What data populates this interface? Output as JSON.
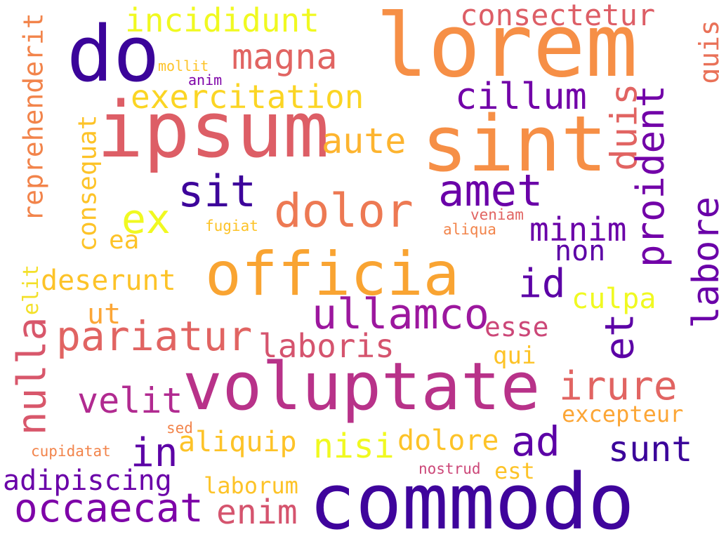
{
  "words": [
    {
      "text": "lorem",
      "color": "#f68f46",
      "rotated": false
    },
    {
      "text": "do",
      "color": "#3b049a",
      "rotated": false
    },
    {
      "text": "ipsum",
      "color": "#dd5e66",
      "rotated": false
    },
    {
      "text": "sint",
      "color": "#f68f46",
      "rotated": false
    },
    {
      "text": "commodo",
      "color": "#3f049c",
      "rotated": false
    },
    {
      "text": "voluptate",
      "color": "#b83289",
      "rotated": false
    },
    {
      "text": "officia",
      "color": "#f9a432",
      "rotated": false
    },
    {
      "text": "incididunt",
      "color": "#f0f921",
      "rotated": false
    },
    {
      "text": "consectetur",
      "color": "#dd5e66",
      "rotated": false
    },
    {
      "text": "magna",
      "color": "#e16462",
      "rotated": false
    },
    {
      "text": "mollit",
      "color": "#fdc328",
      "rotated": false
    },
    {
      "text": "anim",
      "color": "#7e03a8",
      "rotated": false
    },
    {
      "text": "exercitation",
      "color": "#fbd524",
      "rotated": false
    },
    {
      "text": "cillum",
      "color": "#7201a8",
      "rotated": false
    },
    {
      "text": "aute",
      "color": "#fdb42f",
      "rotated": false
    },
    {
      "text": "sit",
      "color": "#3d049b",
      "rotated": false
    },
    {
      "text": "amet",
      "color": "#6a00a8",
      "rotated": false
    },
    {
      "text": "dolor",
      "color": "#ed7953",
      "rotated": false
    },
    {
      "text": "ex",
      "color": "#f0f921",
      "rotated": false
    },
    {
      "text": "ea",
      "color": "#fdc328",
      "rotated": false
    },
    {
      "text": "fugiat",
      "color": "#fdc328",
      "rotated": false
    },
    {
      "text": "veniam",
      "color": "#e16462",
      "rotated": false
    },
    {
      "text": "aliqua",
      "color": "#f2844b",
      "rotated": false
    },
    {
      "text": "minim",
      "color": "#6a00a8",
      "rotated": false
    },
    {
      "text": "non",
      "color": "#5c01a6",
      "rotated": false
    },
    {
      "text": "id",
      "color": "#5c01a6",
      "rotated": false
    },
    {
      "text": "culpa",
      "color": "#f0f921",
      "rotated": false
    },
    {
      "text": "deserunt",
      "color": "#fdc328",
      "rotated": false
    },
    {
      "text": "ut",
      "color": "#fca636",
      "rotated": false
    },
    {
      "text": "pariatur",
      "color": "#e16462",
      "rotated": false
    },
    {
      "text": "ullamco",
      "color": "#9c179e",
      "rotated": false
    },
    {
      "text": "esse",
      "color": "#cc4778",
      "rotated": false
    },
    {
      "text": "laboris",
      "color": "#d5546e",
      "rotated": false
    },
    {
      "text": "qui",
      "color": "#fdc328",
      "rotated": false
    },
    {
      "text": "velit",
      "color": "#b12a90",
      "rotated": false
    },
    {
      "text": "irure",
      "color": "#e16462",
      "rotated": false
    },
    {
      "text": "excepteur",
      "color": "#fca636",
      "rotated": false
    },
    {
      "text": "in",
      "color": "#5c01a6",
      "rotated": false
    },
    {
      "text": "aliquip",
      "color": "#fdc328",
      "rotated": false
    },
    {
      "text": "nisi",
      "color": "#f0f921",
      "rotated": false
    },
    {
      "text": "dolore",
      "color": "#fdc328",
      "rotated": false
    },
    {
      "text": "ad",
      "color": "#5c01a6",
      "rotated": false
    },
    {
      "text": "sunt",
      "color": "#3b049a",
      "rotated": false
    },
    {
      "text": "sed",
      "color": "#f2844b",
      "rotated": false
    },
    {
      "text": "cupidatat",
      "color": "#f2844b",
      "rotated": false
    },
    {
      "text": "nostrud",
      "color": "#cc4778",
      "rotated": false
    },
    {
      "text": "est",
      "color": "#fdc328",
      "rotated": false
    },
    {
      "text": "adipiscing",
      "color": "#6a00a8",
      "rotated": false
    },
    {
      "text": "laborum",
      "color": "#fdc328",
      "rotated": false
    },
    {
      "text": "occaecat",
      "color": "#7e03a8",
      "rotated": false
    },
    {
      "text": "enim",
      "color": "#d5546e",
      "rotated": false
    },
    {
      "text": "reprehenderit",
      "color": "#f2844b",
      "rotated": true
    },
    {
      "text": "consequat",
      "color": "#fdc328",
      "rotated": true
    },
    {
      "text": "elit",
      "color": "#f3e02a",
      "rotated": true
    },
    {
      "text": "nulla",
      "color": "#d8576b",
      "rotated": true
    },
    {
      "text": "duis",
      "color": "#e16462",
      "rotated": true
    },
    {
      "text": "proident",
      "color": "#7201a8",
      "rotated": true
    },
    {
      "text": "quis",
      "color": "#e97158",
      "rotated": true
    },
    {
      "text": "labore",
      "color": "#6a00a8",
      "rotated": true
    },
    {
      "text": "et",
      "color": "#5c01a6",
      "rotated": true
    }
  ]
}
